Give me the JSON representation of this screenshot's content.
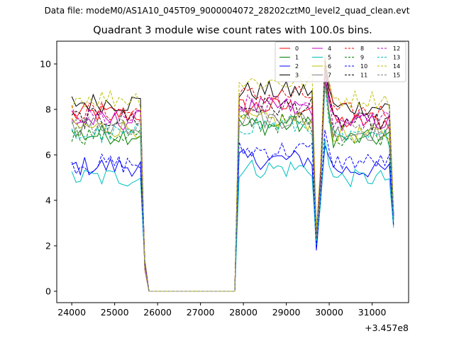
{
  "figure": {
    "suptitle": "Data file: modeM0/AS1A10_045T09_9000004072_28202cztM0_level2_quad_clean.evt"
  },
  "chart_data": {
    "type": "line",
    "title": "Quadrant 3 module wise count rates with 100.0s bins.",
    "xlabel": "",
    "ylabel": "",
    "x_offset_label": "+3.457e8",
    "xlim": [
      23650,
      31850
    ],
    "ylim": [
      -0.5,
      11.0
    ],
    "xticks": [
      24000,
      25000,
      26000,
      27000,
      28000,
      29000,
      30000,
      31000
    ],
    "xtick_labels": [
      "24000",
      "25000",
      "26000",
      "27000",
      "28000",
      "29000",
      "30000",
      "31000"
    ],
    "yticks": [
      0,
      2,
      4,
      6,
      8,
      10
    ],
    "ytick_labels": [
      "0",
      "2",
      "4",
      "6",
      "8",
      "10"
    ],
    "grid": false,
    "legend_position": "top-right",
    "legend_columns": 4,
    "segments": {
      "t_start": 24000,
      "bin": 100,
      "n_first": 17,
      "decline": [
        [
          25700,
          1.2
        ],
        [
          25800,
          0.0
        ]
      ],
      "zero_start": 25800,
      "zero_end": 27800,
      "t_second": 27900,
      "n_second": 18,
      "spike_times": [
        29700,
        29800,
        29900,
        30000
      ],
      "t_third": 30100,
      "n_third": 14,
      "end_point": 31500
    },
    "series": [
      {
        "name": "0",
        "color": "#ff0000",
        "dash": "solid",
        "base1": 7.8,
        "base2": 8.1,
        "spike": [
          2.4,
          5.0,
          9.9,
          8.6
        ],
        "end": 3.3
      },
      {
        "name": "1",
        "color": "#008000",
        "dash": "solid",
        "base1": 6.9,
        "base2": 7.3,
        "spike": [
          2.6,
          4.8,
          9.6,
          7.6
        ],
        "end": 3.2
      },
      {
        "name": "2",
        "color": "#0000ff",
        "dash": "solid",
        "base1": 5.5,
        "base2": 5.8,
        "spike": [
          1.8,
          4.0,
          6.4,
          5.9
        ],
        "end": 2.9
      },
      {
        "name": "3",
        "color": "#000000",
        "dash": "solid",
        "base1": 8.3,
        "base2": 8.8,
        "spike": [
          2.2,
          5.2,
          10.2,
          8.9
        ],
        "end": 3.4
      },
      {
        "name": "4",
        "color": "#c000c0",
        "dash": "solid",
        "base1": 7.5,
        "base2": 8.1,
        "spike": [
          2.5,
          5.1,
          9.5,
          8.3
        ],
        "end": 3.3
      },
      {
        "name": "5",
        "color": "#00bfbf",
        "dash": "solid",
        "base1": 5.0,
        "base2": 5.4,
        "spike": [
          2.0,
          3.9,
          6.7,
          5.5
        ],
        "end": 2.8
      },
      {
        "name": "6",
        "color": "#bfbf00",
        "dash": "solid",
        "base1": 7.2,
        "base2": 7.5,
        "spike": [
          2.3,
          4.6,
          9.2,
          7.7
        ],
        "end": 3.1
      },
      {
        "name": "7",
        "color": "#808080",
        "dash": "solid",
        "base1": 7.3,
        "base2": 7.6,
        "spike": [
          2.4,
          4.7,
          9.3,
          7.8
        ],
        "end": 3.1
      },
      {
        "name": "8",
        "color": "#ff0000",
        "dash": "dashed",
        "base1": 7.9,
        "base2": 8.6,
        "spike": [
          2.6,
          5.4,
          10.1,
          9.2
        ],
        "end": 3.4
      },
      {
        "name": "9",
        "color": "#008000",
        "dash": "dashed",
        "base1": 6.9,
        "base2": 7.4,
        "spike": [
          2.5,
          4.9,
          9.4,
          7.8
        ],
        "end": 3.2
      },
      {
        "name": "10",
        "color": "#0000ff",
        "dash": "dashed",
        "base1": 5.6,
        "base2": 6.2,
        "spike": [
          1.9,
          4.2,
          7.1,
          6.2
        ],
        "end": 2.9
      },
      {
        "name": "11",
        "color": "#000000",
        "dash": "dashed",
        "base1": 7.6,
        "base2": 8.1,
        "spike": [
          2.3,
          5.0,
          10.0,
          8.5
        ],
        "end": 3.3
      },
      {
        "name": "12",
        "color": "#c000c0",
        "dash": "dashed",
        "base1": 7.6,
        "base2": 8.2,
        "spike": [
          2.4,
          5.0,
          9.7,
          8.4
        ],
        "end": 3.3
      },
      {
        "name": "13",
        "color": "#00bfbf",
        "dash": "dashed",
        "base1": 6.9,
        "base2": 7.3,
        "spike": [
          2.2,
          4.5,
          9.0,
          7.4
        ],
        "end": 3.1
      },
      {
        "name": "14",
        "color": "#bfbf00",
        "dash": "dashed",
        "base1": 8.5,
        "base2": 9.2,
        "spike": [
          2.7,
          5.6,
          10.4,
          9.1
        ],
        "end": 3.5
      },
      {
        "name": "15",
        "color": "#808080",
        "dash": "dashed",
        "base1": 7.3,
        "base2": 7.8,
        "spike": [
          2.3,
          4.7,
          9.2,
          7.9
        ],
        "end": 3.2
      }
    ]
  }
}
